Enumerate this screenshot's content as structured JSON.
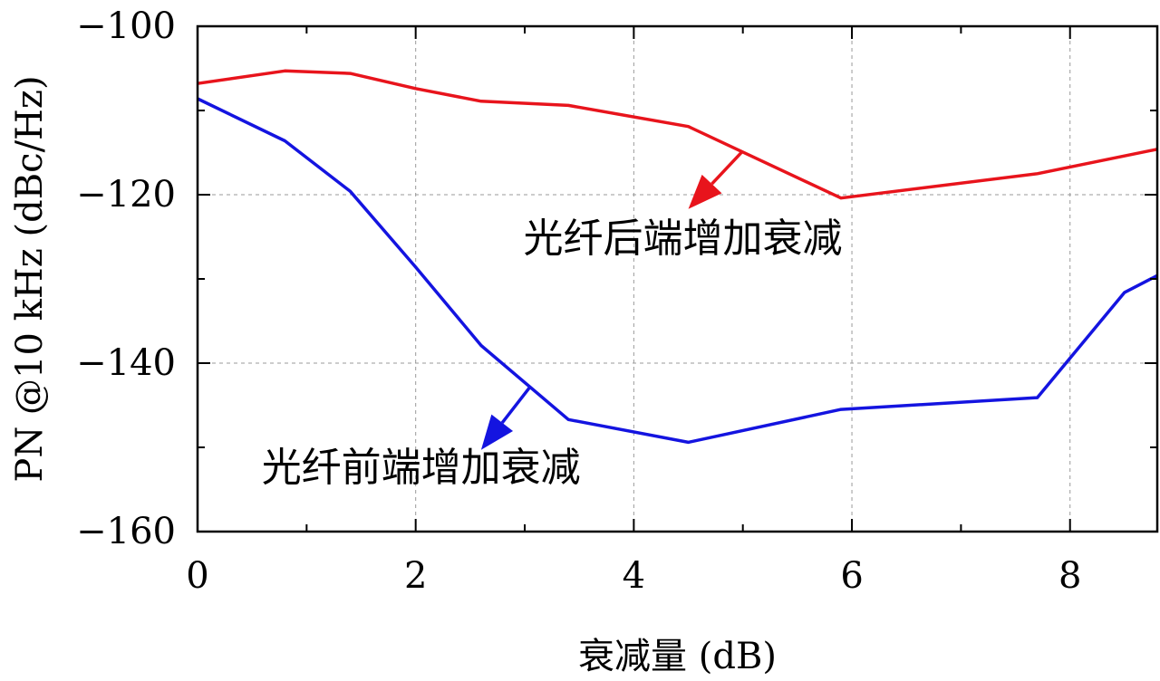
{
  "chart_data": {
    "type": "line",
    "xlabel": "衰减量 (dB)",
    "ylabel": "PN @10 kHz (dBc/Hz)",
    "xlim": [
      0,
      8.8
    ],
    "ylim": [
      -160,
      -100
    ],
    "xticks": [
      0,
      2,
      4,
      6,
      8
    ],
    "yticks": [
      -160,
      -140,
      -120,
      -100
    ],
    "xtick_labels": [
      "0",
      "2",
      "4",
      "6",
      "8"
    ],
    "ytick_labels": [
      "−160",
      "−140",
      "−120",
      "−100"
    ],
    "grid": true,
    "series": [
      {
        "name": "光纤后端增加衰减",
        "color": "#e8141c",
        "x": [
          0,
          0.8,
          1.4,
          2.0,
          2.6,
          3.4,
          4.5,
          5.9,
          7.7,
          8.8
        ],
        "y": [
          -106.8,
          -105.3,
          -105.6,
          -107.4,
          -108.9,
          -109.4,
          -111.9,
          -120.4,
          -117.5,
          -114.6
        ]
      },
      {
        "name": "光纤前端增加衰减",
        "color": "#1414e0",
        "x": [
          0,
          0.8,
          1.4,
          2.0,
          2.6,
          3.4,
          4.5,
          5.9,
          7.7,
          8.5,
          8.8
        ],
        "y": [
          -108.6,
          -113.6,
          -119.6,
          -128.6,
          -137.9,
          -146.7,
          -149.4,
          -145.5,
          -144.1,
          -131.6,
          -129.6
        ]
      }
    ],
    "annotations": [
      {
        "text": "光纤后端增加衰减",
        "series": 0,
        "arrow_from": [
          5.0,
          -114.8
        ],
        "arrow_to": [
          4.5,
          -121.7
        ],
        "text_at": [
          4.45,
          -126.8
        ]
      },
      {
        "text": "光纤前端增加衰减",
        "series": 1,
        "arrow_from": [
          3.05,
          -142.8
        ],
        "arrow_to": [
          2.6,
          -150.3
        ],
        "text_at": [
          2.05,
          -154.0
        ]
      }
    ]
  }
}
